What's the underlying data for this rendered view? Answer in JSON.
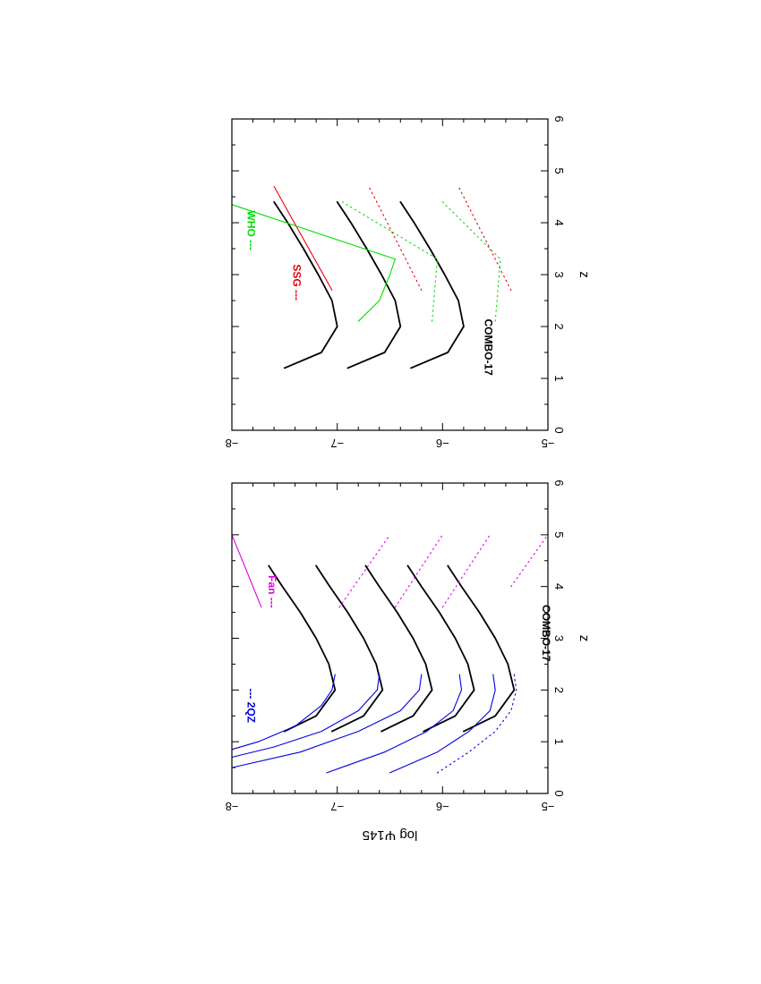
{
  "chart_data": [
    {
      "type": "line",
      "panel": "top",
      "xlabel": "z",
      "ylabel": "",
      "xlim": [
        0,
        6
      ],
      "ylim": [
        -8,
        -5
      ],
      "xticks": [
        "0",
        "1",
        "2",
        "3",
        "4",
        "5",
        "6"
      ],
      "yticks": [
        "−8",
        "−7",
        "−6",
        "−5"
      ],
      "annotations": {
        "combo": "COMBO-17",
        "ssg": "SSG ---",
        "who": "WHO ---"
      },
      "colors": {
        "combo": "#000000",
        "ssg": "#e8000b",
        "who": "#00e000"
      },
      "series": [
        {
          "key": "combo",
          "values": [
            [
              1.2,
              -6.3
            ],
            [
              1.5,
              -5.95
            ],
            [
              2,
              -5.8
            ],
            [
              2.5,
              -5.85
            ],
            [
              3,
              -5.98
            ],
            [
              3.5,
              -6.12
            ],
            [
              4,
              -6.27
            ],
            [
              4.4,
              -6.4
            ]
          ]
        },
        {
          "key": "combo",
          "values": [
            [
              1.2,
              -6.9
            ],
            [
              1.5,
              -6.55
            ],
            [
              2,
              -6.4
            ],
            [
              2.5,
              -6.45
            ],
            [
              3,
              -6.58
            ],
            [
              3.5,
              -6.72
            ],
            [
              4,
              -6.87
            ],
            [
              4.4,
              -7.0
            ]
          ]
        },
        {
          "key": "combo",
          "values": [
            [
              1.2,
              -7.5
            ],
            [
              1.5,
              -7.15
            ],
            [
              2,
              -7.0
            ],
            [
              2.5,
              -7.05
            ],
            [
              3,
              -7.18
            ],
            [
              3.5,
              -7.32
            ],
            [
              4,
              -7.47
            ],
            [
              4.4,
              -7.6
            ]
          ]
        },
        {
          "key": "ssg",
          "dotted": true,
          "values": [
            [
              2.7,
              -5.35
            ],
            [
              4.7,
              -5.85
            ]
          ]
        },
        {
          "key": "ssg",
          "dotted": true,
          "values": [
            [
              2.7,
              -6.2
            ],
            [
              4.7,
              -6.7
            ]
          ]
        },
        {
          "key": "ssg",
          "values": [
            [
              2.7,
              -7.05
            ],
            [
              4.7,
              -7.6
            ]
          ]
        },
        {
          "key": "who",
          "dotted": true,
          "values": [
            [
              2.1,
              -5.5
            ],
            [
              3.3,
              -5.45
            ],
            [
              4.4,
              -6.0
            ]
          ]
        },
        {
          "key": "who",
          "dotted": true,
          "values": [
            [
              2.1,
              -6.1
            ],
            [
              3.3,
              -6.05
            ],
            [
              4.4,
              -6.95
            ]
          ]
        },
        {
          "key": "who",
          "values": [
            [
              2.1,
              -6.8
            ],
            [
              2.5,
              -6.6
            ],
            [
              3.0,
              -6.5
            ],
            [
              3.3,
              -6.45
            ],
            [
              4.35,
              -8.0
            ]
          ]
        }
      ]
    },
    {
      "type": "line",
      "panel": "bottom",
      "xlabel": "z",
      "ylabel": "log Ψ145",
      "xlim": [
        0,
        6
      ],
      "ylim": [
        -8,
        -5
      ],
      "xticks": [
        "0",
        "1",
        "2",
        "3",
        "4",
        "5",
        "6"
      ],
      "yticks": [
        "−8",
        "−7",
        "−6",
        "−5"
      ],
      "annotations": {
        "combo": "COMBO-17",
        "fan": "Fan ---",
        "twoqz": "--- 2QZ"
      },
      "colors": {
        "combo": "#000000",
        "fan": "#e000e0",
        "twoqz": "#0000e0"
      },
      "series": [
        {
          "key": "combo",
          "values": [
            [
              1.2,
              -5.8
            ],
            [
              1.5,
              -5.5
            ],
            [
              2,
              -5.32
            ],
            [
              2.5,
              -5.38
            ],
            [
              3,
              -5.5
            ],
            [
              3.5,
              -5.65
            ],
            [
              4,
              -5.82
            ],
            [
              4.4,
              -5.95
            ]
          ]
        },
        {
          "key": "combo",
          "values": [
            [
              1.2,
              -6.18
            ],
            [
              1.5,
              -5.88
            ],
            [
              2,
              -5.7
            ],
            [
              2.5,
              -5.76
            ],
            [
              3,
              -5.88
            ],
            [
              3.5,
              -6.03
            ],
            [
              4,
              -6.2
            ],
            [
              4.4,
              -6.33
            ]
          ]
        },
        {
          "key": "combo",
          "values": [
            [
              1.2,
              -6.58
            ],
            [
              1.5,
              -6.28
            ],
            [
              2,
              -6.1
            ],
            [
              2.5,
              -6.16
            ],
            [
              3,
              -6.28
            ],
            [
              3.5,
              -6.43
            ],
            [
              4,
              -6.6
            ],
            [
              4.4,
              -6.73
            ]
          ]
        },
        {
          "key": "combo",
          "values": [
            [
              1.2,
              -7.05
            ],
            [
              1.5,
              -6.75
            ],
            [
              2,
              -6.57
            ],
            [
              2.5,
              -6.63
            ],
            [
              3,
              -6.75
            ],
            [
              3.5,
              -6.9
            ],
            [
              4,
              -7.07
            ],
            [
              4.4,
              -7.2
            ]
          ]
        },
        {
          "key": "combo",
          "values": [
            [
              1.2,
              -7.5
            ],
            [
              1.5,
              -7.2
            ],
            [
              2,
              -7.02
            ],
            [
              2.5,
              -7.08
            ],
            [
              3,
              -7.2
            ],
            [
              3.5,
              -7.35
            ],
            [
              4,
              -7.52
            ],
            [
              4.4,
              -7.65
            ]
          ]
        },
        {
          "key": "twoqz",
          "dotted": true,
          "values": [
            [
              0.4,
              -6.05
            ],
            [
              0.8,
              -5.75
            ],
            [
              1.2,
              -5.5
            ],
            [
              1.6,
              -5.35
            ],
            [
              2.0,
              -5.3
            ],
            [
              2.3,
              -5.32
            ]
          ]
        },
        {
          "key": "twoqz",
          "values": [
            [
              0.4,
              -6.5
            ],
            [
              0.8,
              -6.05
            ],
            [
              1.2,
              -5.75
            ],
            [
              1.6,
              -5.55
            ],
            [
              2.0,
              -5.5
            ],
            [
              2.3,
              -5.52
            ]
          ]
        },
        {
          "key": "twoqz",
          "values": [
            [
              0.4,
              -7.1
            ],
            [
              0.8,
              -6.55
            ],
            [
              1.2,
              -6.15
            ],
            [
              1.6,
              -5.9
            ],
            [
              2.0,
              -5.82
            ],
            [
              2.3,
              -5.84
            ]
          ]
        },
        {
          "key": "twoqz",
          "values": [
            [
              0.5,
              -8.0
            ],
            [
              0.8,
              -7.35
            ],
            [
              1.2,
              -6.8
            ],
            [
              1.6,
              -6.4
            ],
            [
              2.0,
              -6.22
            ],
            [
              2.3,
              -6.2
            ]
          ]
        },
        {
          "key": "twoqz",
          "values": [
            [
              0.7,
              -8.0
            ],
            [
              0.9,
              -7.6
            ],
            [
              1.2,
              -7.15
            ],
            [
              1.6,
              -6.8
            ],
            [
              2.0,
              -6.62
            ],
            [
              2.3,
              -6.6
            ]
          ]
        },
        {
          "key": "twoqz",
          "values": [
            [
              0.85,
              -8.0
            ],
            [
              1.0,
              -7.75
            ],
            [
              1.3,
              -7.4
            ],
            [
              1.7,
              -7.15
            ],
            [
              2.0,
              -7.05
            ],
            [
              2.3,
              -7.02
            ]
          ]
        },
        {
          "key": "fan",
          "dotted": true,
          "values": [
            [
              4.0,
              -5.35
            ],
            [
              5.0,
              -5.0
            ]
          ]
        },
        {
          "key": "fan",
          "dotted": true,
          "values": [
            [
              3.6,
              -6.0
            ],
            [
              5.0,
              -5.55
            ]
          ]
        },
        {
          "key": "fan",
          "dotted": true,
          "values": [
            [
              3.6,
              -6.45
            ],
            [
              5.0,
              -6.0
            ]
          ]
        },
        {
          "key": "fan",
          "dotted": true,
          "values": [
            [
              3.6,
              -6.98
            ],
            [
              5.0,
              -6.5
            ]
          ]
        },
        {
          "key": "fan",
          "values": [
            [
              3.6,
              -7.72
            ],
            [
              5.0,
              -8.0
            ]
          ]
        }
      ]
    }
  ]
}
